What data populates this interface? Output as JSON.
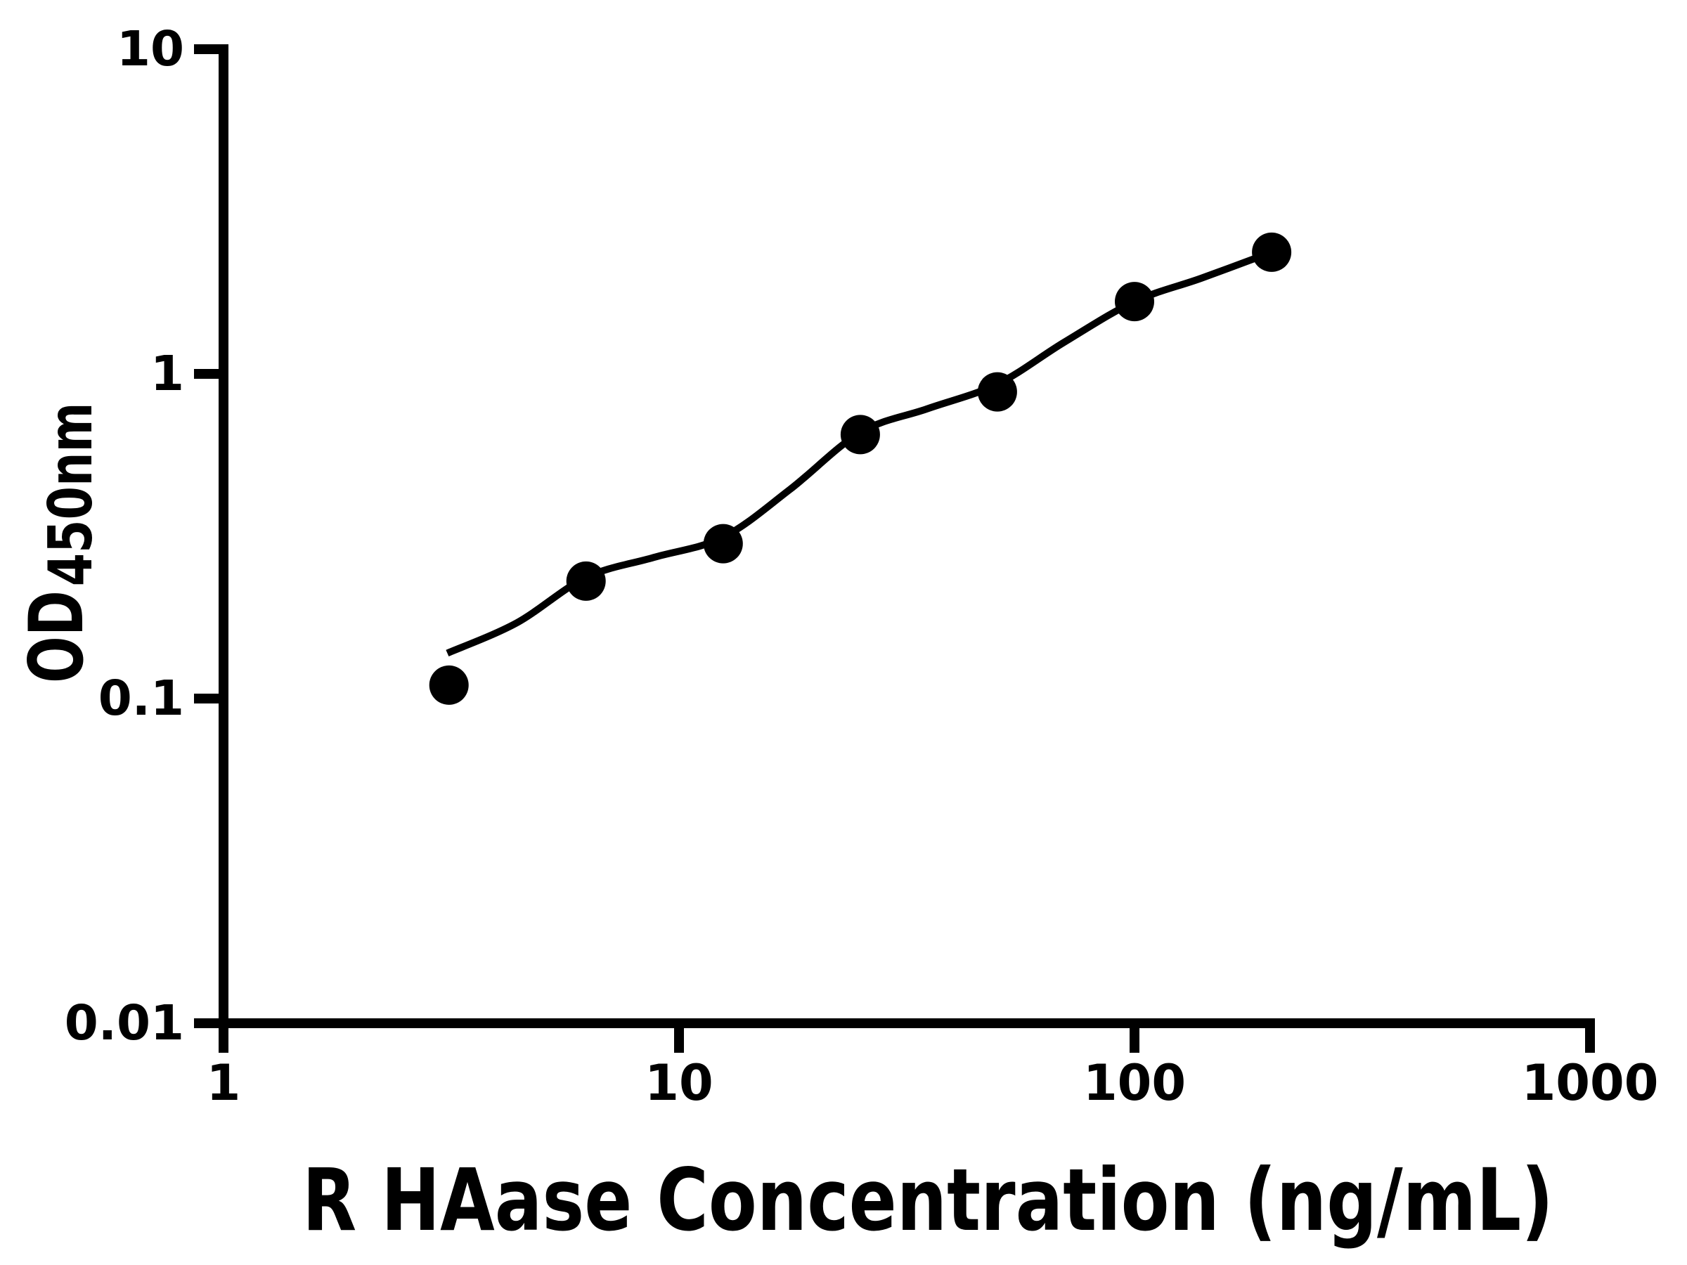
{
  "chart_data": {
    "type": "scatter",
    "title": "",
    "xlabel": "R HAase Concentration (ng/mL)",
    "ylabel_main": "OD",
    "ylabel_sub": "450nm",
    "x_scale": "log",
    "y_scale": "log",
    "xlim": [
      1,
      1000
    ],
    "ylim": [
      0.01,
      10
    ],
    "grid": false,
    "legend": null,
    "background_color": "#ffffff",
    "axis_color": "#000000",
    "marker_color": "#000000",
    "curve_color": "#000000",
    "x_ticks": [
      {
        "value": 1,
        "label": "1"
      },
      {
        "value": 10,
        "label": "10"
      },
      {
        "value": 100,
        "label": "100"
      },
      {
        "value": 1000,
        "label": "1000"
      }
    ],
    "y_ticks": [
      {
        "value": 10,
        "label": "10"
      },
      {
        "value": 1,
        "label": "1"
      },
      {
        "value": 0.1,
        "label": "0.1"
      },
      {
        "value": 0.01,
        "label": "0.01"
      }
    ],
    "points": [
      {
        "x": 3.125,
        "y": 0.11
      },
      {
        "x": 6.25,
        "y": 0.23
      },
      {
        "x": 12.5,
        "y": 0.3
      },
      {
        "x": 25,
        "y": 0.65
      },
      {
        "x": 50,
        "y": 0.88
      },
      {
        "x": 100,
        "y": 1.67
      },
      {
        "x": 200,
        "y": 2.37
      }
    ],
    "fit_curve": [
      [
        3.1,
        0.138
      ],
      [
        4.4,
        0.171
      ],
      [
        6.25,
        0.236
      ],
      [
        8.8,
        0.272
      ],
      [
        12.5,
        0.314
      ],
      [
        17.5,
        0.44
      ],
      [
        25,
        0.66
      ],
      [
        35,
        0.78
      ],
      [
        50,
        0.93
      ],
      [
        70,
        1.25
      ],
      [
        100,
        1.67
      ],
      [
        140,
        1.97
      ],
      [
        200,
        2.37
      ]
    ]
  }
}
